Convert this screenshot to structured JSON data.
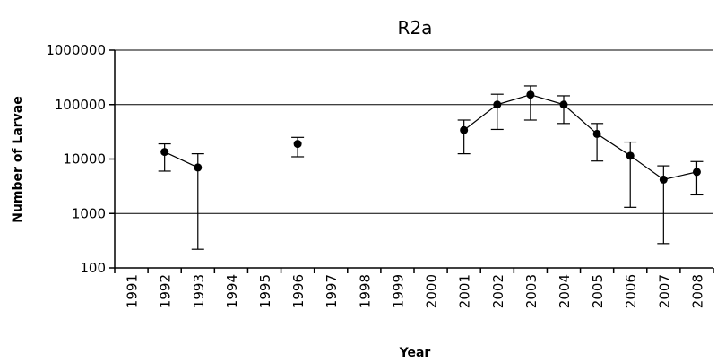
{
  "chart_data": {
    "type": "line",
    "title": "R2a",
    "xlabel": "Year",
    "ylabel": "Number of Larvae",
    "y_scale": "log",
    "ylim": [
      100,
      1000000
    ],
    "yticks": [
      "100",
      "1000",
      "10000",
      "100000",
      "1000000"
    ],
    "grid": "horizontal",
    "categories": [
      "1991",
      "1992",
      "1993",
      "1994",
      "1995",
      "1996",
      "1997",
      "1998",
      "1999",
      "2000",
      "2001",
      "2002",
      "2003",
      "2004",
      "2005",
      "2006",
      "2007",
      "2008"
    ],
    "series": [
      {
        "values": [
          null,
          13500,
          7000,
          null,
          null,
          19000,
          null,
          null,
          null,
          null,
          34000,
          100000,
          152000,
          100000,
          29000,
          11500,
          4200,
          5800
        ],
        "error_low": [
          null,
          6000,
          220,
          null,
          null,
          11000,
          null,
          null,
          null,
          null,
          12500,
          35000,
          52000,
          45000,
          9200,
          1300,
          280,
          2200
        ],
        "error_high": [
          null,
          19000,
          12500,
          null,
          null,
          25000,
          null,
          null,
          null,
          null,
          52000,
          155000,
          220000,
          145000,
          45000,
          20500,
          7500,
          9000
        ]
      }
    ]
  }
}
